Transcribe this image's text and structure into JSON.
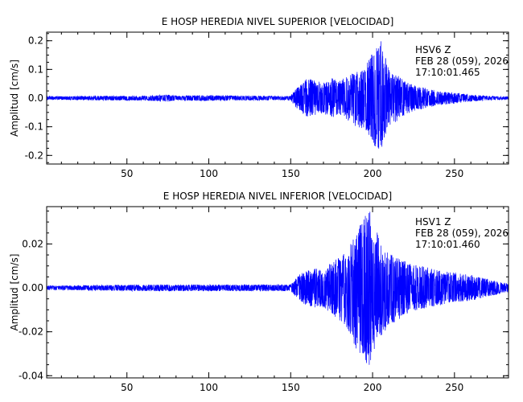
{
  "chart_data": [
    {
      "type": "line",
      "title": "E HOSP HEREDIA NIVEL SUPERIOR [VELOCIDAD]",
      "xlabel": "",
      "ylabel": "Amplitud [cm/s]",
      "xlim": [
        1,
        283
      ],
      "ylim": [
        -0.23,
        0.23
      ],
      "x_ticks": [
        50,
        100,
        150,
        200,
        250
      ],
      "y_ticks": [
        -0.2,
        -0.1,
        0.0,
        0.1,
        0.2
      ],
      "y_tick_labels": [
        "-0.2",
        "-0.1",
        "0.0",
        "0.1",
        "0.2"
      ],
      "annotation": [
        "HSV6   Z",
        "FEB 28 (059), 2026",
        "17:10:01.465"
      ],
      "line_color": "#0000ff",
      "series": [
        {
          "envelope": {
            "x": [
              1,
              20,
              40,
              60,
              75,
              80,
              95,
              110,
              130,
              150,
              153,
              155,
              160,
              165,
              170,
              175,
              180,
              185,
              190,
              195,
              198,
              200,
              203,
              205,
              208,
              210,
              215,
              220,
              225,
              230,
              240,
              250,
              260,
              270,
              283
            ],
            "max": [
              0.006,
              0.007,
              0.008,
              0.008,
              0.012,
              0.008,
              0.01,
              0.009,
              0.008,
              0.007,
              0.035,
              0.04,
              0.07,
              0.06,
              0.055,
              0.07,
              0.06,
              0.08,
              0.09,
              0.1,
              0.14,
              0.16,
              0.19,
              0.22,
              0.14,
              0.1,
              0.08,
              0.06,
              0.045,
              0.04,
              0.025,
              0.02,
              0.012,
              0.008,
              0.005
            ],
            "min": [
              -0.006,
              -0.007,
              -0.008,
              -0.008,
              -0.012,
              -0.008,
              -0.01,
              -0.009,
              -0.008,
              -0.007,
              -0.035,
              -0.04,
              -0.07,
              -0.06,
              -0.055,
              -0.07,
              -0.06,
              -0.08,
              -0.1,
              -0.11,
              -0.14,
              -0.16,
              -0.18,
              -0.21,
              -0.14,
              -0.1,
              -0.08,
              -0.06,
              -0.045,
              -0.04,
              -0.025,
              -0.02,
              -0.012,
              -0.008,
              -0.005
            ]
          }
        }
      ]
    },
    {
      "type": "line",
      "title": "E HOSP HEREDIA NIVEL INFERIOR [VELOCIDAD]",
      "xlabel": "",
      "ylabel": "Amplitud [cm/s]",
      "xlim": [
        1,
        283
      ],
      "ylim": [
        -0.041,
        0.037
      ],
      "x_ticks": [
        50,
        100,
        150,
        200,
        250
      ],
      "y_ticks": [
        -0.04,
        -0.02,
        0.0,
        0.02
      ],
      "y_tick_labels": [
        "-0.04",
        "-0.02",
        "0.00",
        "0.02"
      ],
      "annotation": [
        "HSV1   Z",
        "FEB 28 (059), 2026",
        "17:10:01.460"
      ],
      "line_color": "#0000ff",
      "series": [
        {
          "envelope": {
            "x": [
              1,
              30,
              60,
              90,
              120,
              150,
              153,
              155,
              160,
              165,
              170,
              175,
              180,
              185,
              190,
              195,
              198,
              200,
              203,
              205,
              210,
              215,
              220,
              230,
              240,
              250,
              260,
              270,
              283
            ],
            "max": [
              0.001,
              0.0012,
              0.0015,
              0.0015,
              0.0015,
              0.0015,
              0.004,
              0.006,
              0.008,
              0.009,
              0.008,
              0.012,
              0.014,
              0.018,
              0.025,
              0.033,
              0.036,
              0.03,
              0.025,
              0.02,
              0.016,
              0.014,
              0.012,
              0.01,
              0.008,
              0.007,
              0.006,
              0.004,
              0.002
            ],
            "min": [
              -0.001,
              -0.0012,
              -0.0015,
              -0.0015,
              -0.0015,
              -0.0015,
              -0.004,
              -0.006,
              -0.008,
              -0.009,
              -0.009,
              -0.012,
              -0.015,
              -0.02,
              -0.028,
              -0.032,
              -0.039,
              -0.03,
              -0.025,
              -0.022,
              -0.018,
              -0.015,
              -0.012,
              -0.01,
              -0.008,
              -0.007,
              -0.006,
              -0.004,
              -0.002
            ]
          }
        }
      ]
    }
  ]
}
